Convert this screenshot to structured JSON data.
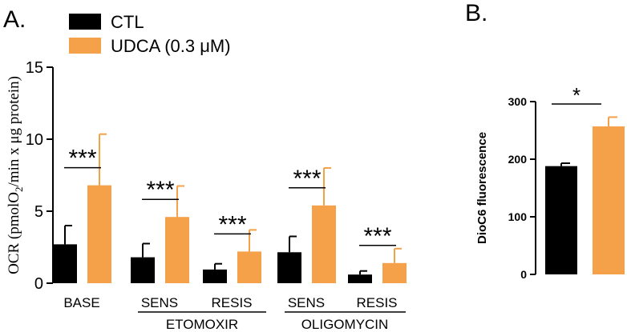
{
  "colors": {
    "ctl": "#000000",
    "udca": "#F5A14A",
    "axis": "#000000"
  },
  "panel_labels": {
    "a": "A.",
    "b": "B."
  },
  "chart_data": [
    {
      "type": "bar",
      "ylabel_prefix": "OCR (pmolO",
      "ylabel_sub": "2",
      "ylabel_suffix": "/min x μg  protein)",
      "ylim": [
        0,
        15
      ],
      "yticks": [
        0,
        5,
        10,
        15
      ],
      "legend": [
        "CTL",
        "UDCA (0.3 μM)"
      ],
      "categories": [
        "BASE",
        "SENS",
        "RESIS",
        "SENS",
        "RESIS"
      ],
      "group_labels": [
        "ETOMOXIR",
        "OLIGOMYCIN"
      ],
      "significance": "***",
      "series": [
        {
          "name": "CTL",
          "values": [
            2.7,
            1.8,
            0.95,
            2.15,
            0.6
          ],
          "errors": [
            1.3,
            0.95,
            0.4,
            1.1,
            0.25
          ]
        },
        {
          "name": "UDCA (0.3 μM)",
          "values": [
            6.8,
            4.6,
            2.2,
            5.4,
            1.4
          ],
          "errors": [
            3.55,
            2.15,
            1.5,
            2.6,
            1.0
          ]
        }
      ]
    },
    {
      "type": "bar",
      "ylabel": "DioC6 fluorescence",
      "ylim": [
        0,
        300
      ],
      "yticks": [
        0,
        100,
        200,
        300
      ],
      "significance": "*",
      "series": [
        {
          "name": "CTL",
          "values": [
            188
          ],
          "errors": [
            5
          ]
        },
        {
          "name": "UDCA (0.3 μM)",
          "values": [
            257
          ],
          "errors": [
            16
          ]
        }
      ]
    }
  ]
}
